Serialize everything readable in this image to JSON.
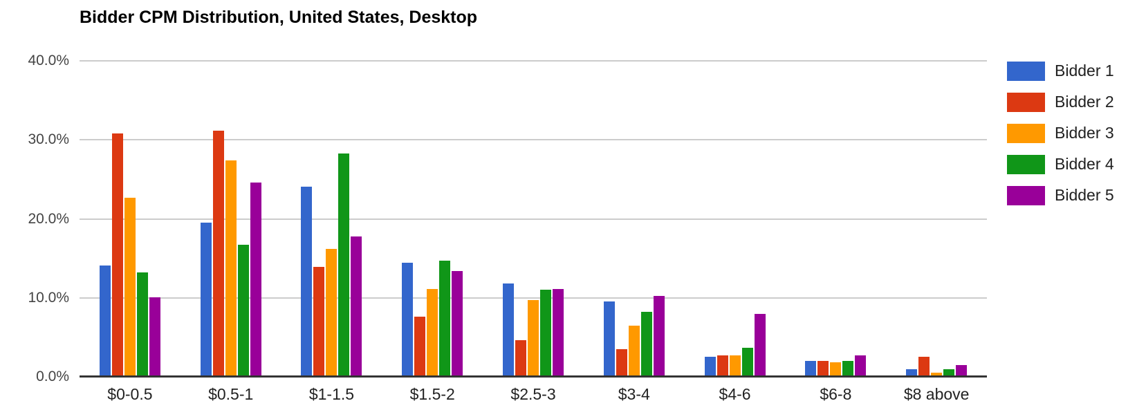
{
  "title": "Bidder CPM Distribution, United States, Desktop",
  "chart_data": {
    "type": "bar",
    "title": "Bidder CPM Distribution, United States, Desktop",
    "categories": [
      "$0-0.5",
      "$0.5-1",
      "$1-1.5",
      "$1.5-2",
      "$2.5-3",
      "$3-4",
      "$4-6",
      "$6-8",
      "$8 above"
    ],
    "series": [
      {
        "name": "Bidder 1",
        "color": "#3366CC",
        "values": [
          14.1,
          19.5,
          24.1,
          14.4,
          11.8,
          9.5,
          2.5,
          2.0,
          1.0
        ]
      },
      {
        "name": "Bidder 2",
        "color": "#DC3912",
        "values": [
          30.8,
          31.2,
          13.9,
          7.6,
          4.6,
          3.5,
          2.7,
          2.0,
          2.5
        ]
      },
      {
        "name": "Bidder 3",
        "color": "#FF9900",
        "values": [
          22.7,
          27.4,
          16.2,
          11.1,
          9.7,
          6.5,
          2.7,
          1.8,
          0.5
        ]
      },
      {
        "name": "Bidder 4",
        "color": "#109618",
        "values": [
          13.2,
          16.7,
          28.3,
          14.7,
          11.0,
          8.2,
          3.7,
          2.0,
          1.0
        ]
      },
      {
        "name": "Bidder 5",
        "color": "#990099",
        "values": [
          10.1,
          24.6,
          17.8,
          13.4,
          11.1,
          10.2,
          8.0,
          2.7,
          1.5
        ]
      }
    ],
    "y_ticks": [
      {
        "label": "40.0%",
        "value": 40
      },
      {
        "label": "30.0%",
        "value": 30
      },
      {
        "label": "20.0%",
        "value": 20
      },
      {
        "label": "10.0%",
        "value": 10
      },
      {
        "label": "0.0%",
        "value": 0
      }
    ],
    "ylim": [
      0,
      40
    ],
    "xlabel": "",
    "ylabel": "",
    "grid": true,
    "legend_position": "right",
    "value_unit": "percent",
    "axis_colors": {
      "gridline": "#cccccc",
      "baseline": "#333333",
      "tick_label": "#444444",
      "category_label": "#222222"
    }
  }
}
